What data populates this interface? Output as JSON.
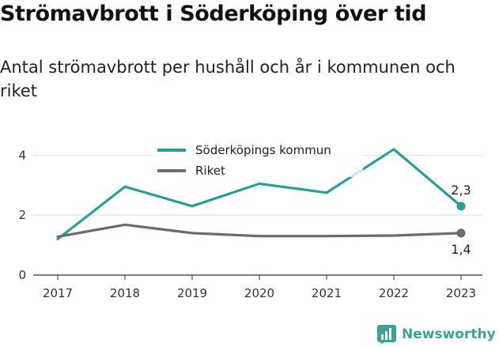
{
  "header": {
    "title": "Strömavbrott i Söderköping över tid",
    "subtitle": "Antal strömavbrott per hushåll och år i kommunen och riket"
  },
  "brand": {
    "name": "Newsworthy",
    "icon": "newsworthy-logo-icon",
    "color": "#3ba395"
  },
  "chart_data": {
    "type": "line",
    "x": [
      "2017",
      "2018",
      "2019",
      "2020",
      "2021",
      "2022",
      "2023"
    ],
    "series": [
      {
        "name": "Söderköpings kommun",
        "color": "#26a096",
        "values": [
          1.2,
          2.95,
          2.3,
          3.05,
          2.75,
          4.2,
          2.3
        ],
        "end_label": "2,3"
      },
      {
        "name": "Riket",
        "color": "#6b6b70",
        "values": [
          1.28,
          1.68,
          1.4,
          1.3,
          1.3,
          1.32,
          1.4
        ],
        "end_label": "1,4"
      }
    ],
    "yticks": [
      "0",
      "2",
      "4"
    ],
    "ytick_values": [
      0,
      2,
      4
    ],
    "ylim": [
      0,
      4.3
    ],
    "grid": true,
    "legend_position": "top-center",
    "title": "",
    "xlabel": "",
    "ylabel": ""
  }
}
